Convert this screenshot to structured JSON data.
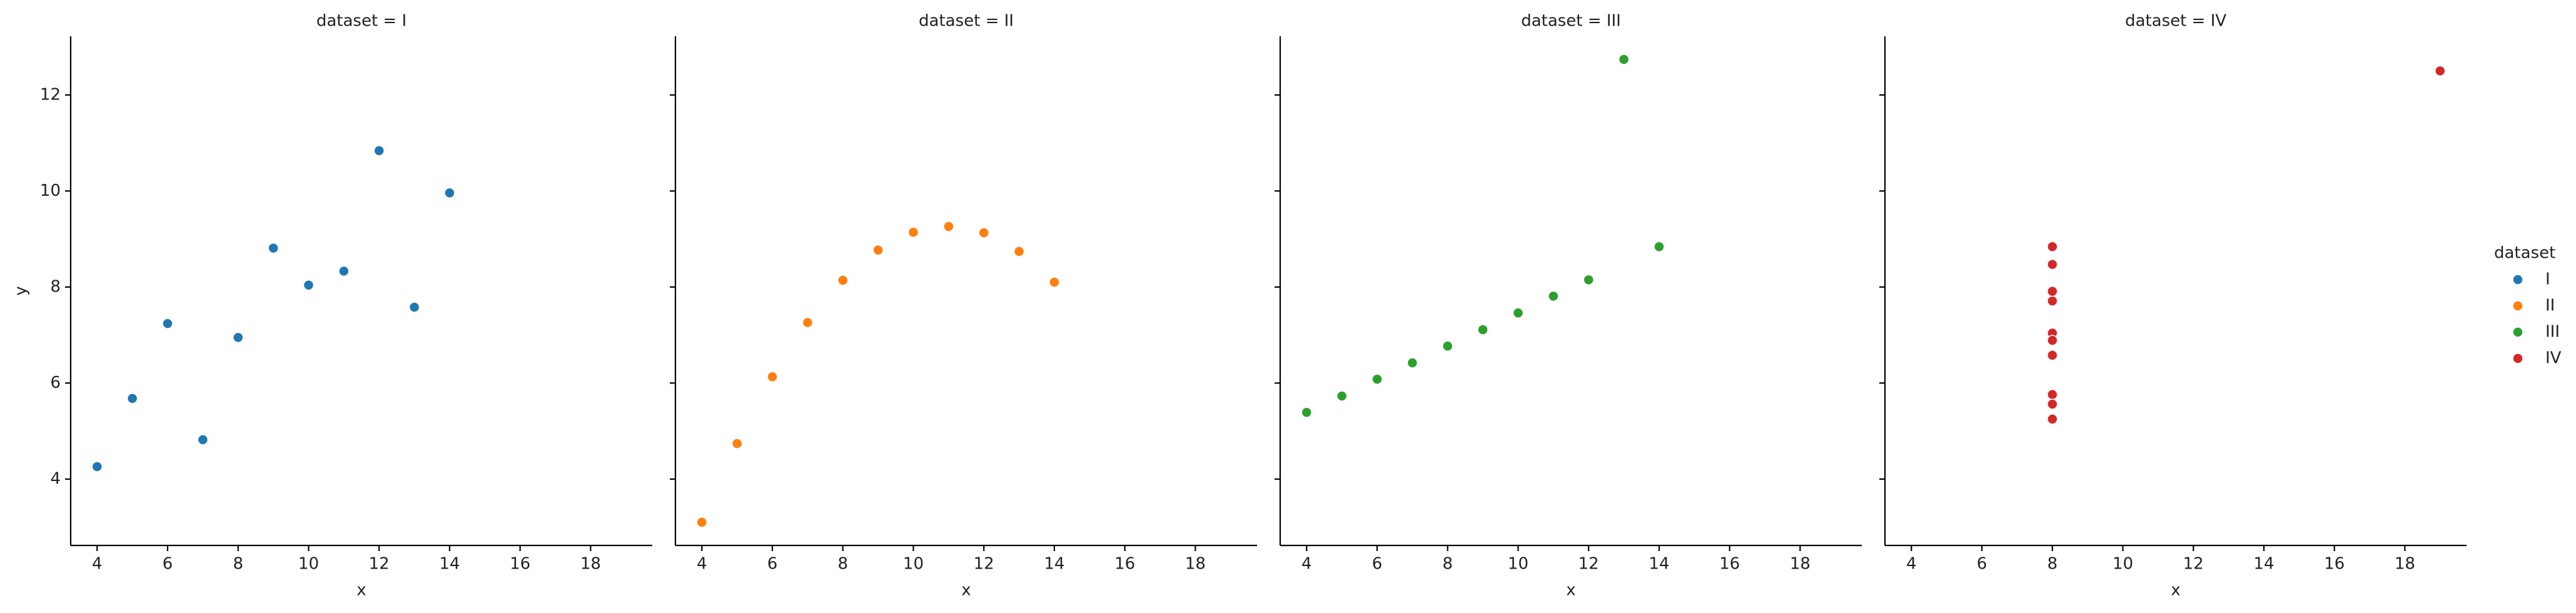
{
  "legend_title": "dataset",
  "legend": "right",
  "chart_data": [
    {
      "type": "scatter",
      "title": "dataset = I",
      "xlabel": "x",
      "ylabel": "y",
      "xlim": [
        3.25,
        19.75
      ],
      "ylim": [
        2.618,
        13.222
      ],
      "xticks": [
        4,
        6,
        8,
        10,
        12,
        14,
        16,
        18
      ],
      "yticks": [
        4,
        6,
        8,
        10,
        12
      ],
      "ytick_labels": true,
      "series": [
        {
          "name": "I",
          "color": "#1f77b4",
          "x": [
            10,
            8,
            13,
            9,
            11,
            14,
            6,
            4,
            12,
            7,
            5
          ],
          "values": [
            8.04,
            6.95,
            7.58,
            8.81,
            8.33,
            9.96,
            7.24,
            4.26,
            10.84,
            4.82,
            5.68
          ]
        }
      ]
    },
    {
      "type": "scatter",
      "title": "dataset = II",
      "xlabel": "x",
      "xlim": [
        3.25,
        19.75
      ],
      "ylim": [
        2.618,
        13.222
      ],
      "xticks": [
        4,
        6,
        8,
        10,
        12,
        14,
        16,
        18
      ],
      "yticks": [
        4,
        6,
        8,
        10,
        12
      ],
      "ytick_labels": false,
      "series": [
        {
          "name": "II",
          "color": "#ff7f0e",
          "x": [
            10,
            8,
            13,
            9,
            11,
            14,
            6,
            4,
            12,
            7,
            5
          ],
          "values": [
            9.14,
            8.14,
            8.74,
            8.77,
            9.26,
            8.1,
            6.13,
            3.1,
            9.13,
            7.26,
            4.74
          ]
        }
      ]
    },
    {
      "type": "scatter",
      "title": "dataset = III",
      "xlabel": "x",
      "xlim": [
        3.25,
        19.75
      ],
      "ylim": [
        2.618,
        13.222
      ],
      "xticks": [
        4,
        6,
        8,
        10,
        12,
        14,
        16,
        18
      ],
      "yticks": [
        4,
        6,
        8,
        10,
        12
      ],
      "ytick_labels": false,
      "series": [
        {
          "name": "III",
          "color": "#2ca02c",
          "x": [
            10,
            8,
            13,
            9,
            11,
            14,
            6,
            4,
            12,
            7,
            5
          ],
          "values": [
            7.46,
            6.77,
            12.74,
            7.11,
            7.81,
            8.84,
            6.08,
            5.39,
            8.15,
            6.42,
            5.73
          ]
        }
      ]
    },
    {
      "type": "scatter",
      "title": "dataset = IV",
      "xlabel": "x",
      "xlim": [
        3.25,
        19.75
      ],
      "ylim": [
        2.618,
        13.222
      ],
      "xticks": [
        4,
        6,
        8,
        10,
        12,
        14,
        16,
        18
      ],
      "yticks": [
        4,
        6,
        8,
        10,
        12
      ],
      "ytick_labels": false,
      "series": [
        {
          "name": "IV",
          "color": "#d62728",
          "x": [
            8,
            8,
            8,
            8,
            8,
            8,
            8,
            19,
            8,
            8,
            8
          ],
          "values": [
            6.58,
            5.76,
            7.71,
            8.84,
            8.47,
            7.04,
            5.25,
            12.5,
            5.56,
            7.91,
            6.89
          ]
        }
      ]
    }
  ]
}
